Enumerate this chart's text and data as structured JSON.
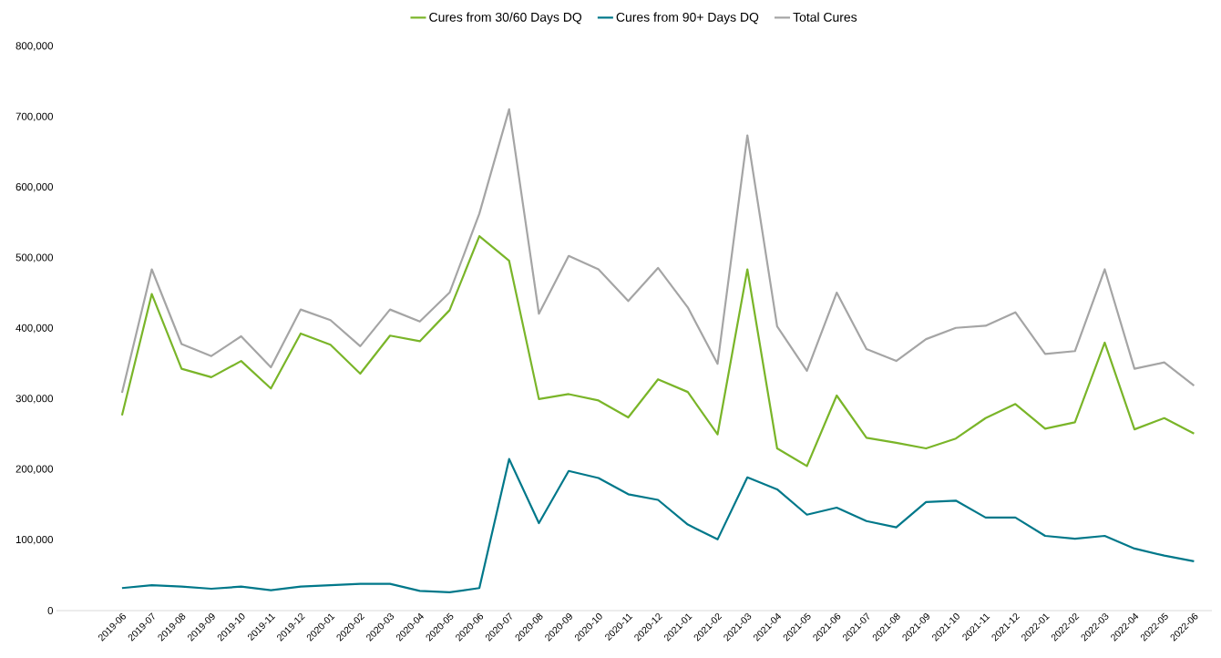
{
  "chart_data": {
    "type": "line",
    "categories": [
      "2019-06",
      "2019-07",
      "2019-08",
      "2019-09",
      "2019-10",
      "2019-11",
      "2019-12",
      "2020-01",
      "2020-02",
      "2020-03",
      "2020-04",
      "2020-05",
      "2020-06",
      "2020-07",
      "2020-08",
      "2020-09",
      "2020-10",
      "2020-11",
      "2020-12",
      "2021-01",
      "2021-02",
      "2021-03",
      "2021-04",
      "2021-05",
      "2021-06",
      "2021-07",
      "2021-08",
      "2021-09",
      "2021-10",
      "2021-11",
      "2021-12",
      "2022-01",
      "2022-02",
      "2022-03",
      "2022-04",
      "2022-05",
      "2022-06"
    ],
    "series": [
      {
        "name": "Cures from 30/60 Days DQ",
        "color": "#7ab529",
        "values": [
          277000,
          449000,
          343000,
          331000,
          354000,
          315000,
          393000,
          377000,
          336000,
          390000,
          382000,
          426000,
          531000,
          496000,
          300000,
          307000,
          298000,
          274000,
          328000,
          310000,
          250000,
          484000,
          230000,
          205000,
          305000,
          245000,
          238000,
          230000,
          244000,
          273000,
          293000,
          258000,
          267000,
          380000,
          257000,
          273000,
          251000
        ]
      },
      {
        "name": "Cures from 90+ Days DQ",
        "color": "#00788a",
        "values": [
          32000,
          36000,
          34000,
          31000,
          34000,
          29000,
          34000,
          36000,
          38000,
          38000,
          28000,
          26000,
          32000,
          215000,
          124000,
          198000,
          188000,
          165000,
          157000,
          122000,
          101000,
          189000,
          172000,
          136000,
          146000,
          127000,
          118000,
          154000,
          156000,
          132000,
          132000,
          106000,
          102000,
          106000,
          88000,
          78000,
          70000
        ]
      },
      {
        "name": "Total Cures",
        "color": "#a5a5a5",
        "values": [
          309000,
          484000,
          378000,
          361000,
          389000,
          345000,
          427000,
          412000,
          375000,
          427000,
          410000,
          451000,
          563000,
          711000,
          421000,
          503000,
          484000,
          439000,
          486000,
          430000,
          350000,
          674000,
          403000,
          340000,
          451000,
          371000,
          354000,
          385000,
          401000,
          404000,
          423000,
          364000,
          368000,
          484000,
          343000,
          352000,
          319000
        ]
      }
    ],
    "ylim": [
      0,
      800000
    ],
    "yticks": [
      0,
      {
        "value": 100000,
        "label": "100,000"
      },
      {
        "value": 200000,
        "label": "200,000"
      },
      {
        "value": 300000,
        "label": "300,000"
      },
      {
        "value": 400000,
        "label": "400,000"
      },
      {
        "value": 500000,
        "label": "500,000"
      },
      {
        "value": 600000,
        "label": "600,000"
      },
      {
        "value": 700000,
        "label": "700,000"
      },
      {
        "value": 800000,
        "label": "800,000"
      }
    ],
    "legend": "top",
    "grid": false,
    "marker": "none",
    "line_style": "solid"
  }
}
